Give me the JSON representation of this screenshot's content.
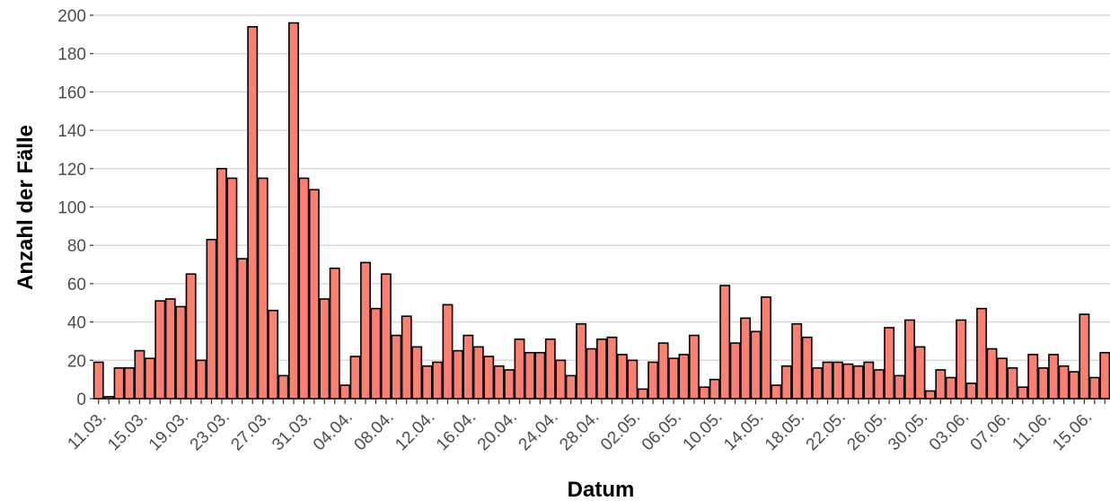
{
  "chart_data": {
    "type": "bar",
    "title": "",
    "xlabel": "Datum",
    "ylabel": "Anzahl der Fälle",
    "ylim": [
      0,
      200
    ],
    "yticks": [
      0,
      20,
      40,
      60,
      80,
      100,
      120,
      140,
      160,
      180,
      200
    ],
    "grid": "horizontal",
    "legend": "none",
    "start_date": "2020-03-11",
    "x_tick_labels": [
      "11.03.",
      "15.03.",
      "19.03.",
      "23.03.",
      "27.03.",
      "31.03.",
      "04.04.",
      "08.04.",
      "12.04.",
      "16.04.",
      "20.04.",
      "24.04.",
      "28.04.",
      "02.05.",
      "06.05.",
      "10.05.",
      "14.05.",
      "18.05.",
      "22.05.",
      "26.05.",
      "30.05.",
      "03.06.",
      "07.06.",
      "11.06.",
      "15.06."
    ],
    "values": [
      19,
      1,
      16,
      16,
      25,
      21,
      51,
      52,
      48,
      65,
      20,
      83,
      120,
      115,
      73,
      194,
      115,
      46,
      12,
      196,
      115,
      109,
      52,
      68,
      7,
      22,
      71,
      47,
      65,
      33,
      43,
      27,
      17,
      19,
      49,
      25,
      33,
      27,
      22,
      17,
      15,
      31,
      24,
      24,
      31,
      20,
      12,
      39,
      26,
      31,
      32,
      23,
      20,
      5,
      19,
      29,
      21,
      23,
      33,
      6,
      10,
      59,
      29,
      42,
      35,
      53,
      7,
      17,
      39,
      32,
      16,
      19,
      19,
      18,
      17,
      19,
      15,
      37,
      12,
      41,
      27,
      4,
      15,
      11,
      41,
      8,
      47,
      26,
      21,
      16,
      6,
      23,
      16,
      23,
      17,
      14,
      44,
      11,
      24
    ],
    "colors": {
      "bar_fill": "#FA8072",
      "bar_stroke": "#000000",
      "grid": "#d9d9d9",
      "tick_text": "#4d4d4d"
    }
  }
}
